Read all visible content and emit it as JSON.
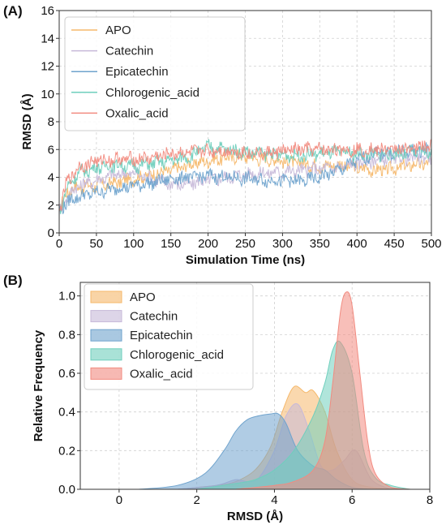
{
  "chart_data": [
    {
      "panel_label": "(A)",
      "type": "line",
      "xlabel": "Simulation Time (ns)",
      "ylabel": "RMSD (Å)",
      "xlim": [
        0,
        500
      ],
      "ylim": [
        0,
        16
      ],
      "xticks": [
        0,
        50,
        100,
        150,
        200,
        250,
        300,
        350,
        400,
        450,
        500
      ],
      "yticks": [
        0,
        2,
        4,
        6,
        8,
        10,
        12,
        14,
        16
      ],
      "grid": true,
      "legend_position": "top-left",
      "series": [
        {
          "name": "APO",
          "color": "#f5b86b",
          "x": [
            0,
            10,
            25,
            50,
            75,
            100,
            125,
            150,
            175,
            200,
            225,
            250,
            275,
            300,
            325,
            350,
            375,
            400,
            425,
            450,
            475,
            500
          ],
          "y": [
            1.5,
            3.0,
            3.3,
            3.4,
            3.6,
            3.9,
            4.2,
            4.5,
            4.9,
            5.2,
            5.4,
            5.5,
            5.3,
            5.2,
            5.0,
            4.8,
            4.9,
            4.7,
            4.5,
            4.6,
            4.9,
            5.0
          ]
        },
        {
          "name": "Catechin",
          "color": "#c7b9d9",
          "x": [
            0,
            10,
            25,
            50,
            75,
            100,
            125,
            150,
            175,
            200,
            225,
            250,
            275,
            300,
            325,
            350,
            375,
            400,
            425,
            450,
            475,
            500
          ],
          "y": [
            1.5,
            2.5,
            3.4,
            3.8,
            4.2,
            4.3,
            3.9,
            3.5,
            3.5,
            3.8,
            4.0,
            4.2,
            4.3,
            4.4,
            4.5,
            4.6,
            4.7,
            5.0,
            5.2,
            5.3,
            5.4,
            5.4
          ]
        },
        {
          "name": "Epicatechin",
          "color": "#6fa3cd",
          "x": [
            0,
            10,
            25,
            50,
            75,
            100,
            125,
            150,
            175,
            200,
            225,
            250,
            275,
            300,
            325,
            350,
            375,
            400,
            425,
            450,
            475,
            500
          ],
          "y": [
            1.5,
            2.2,
            2.6,
            2.9,
            3.2,
            3.4,
            3.6,
            3.9,
            4.0,
            4.1,
            4.0,
            3.9,
            3.8,
            3.8,
            3.7,
            4.0,
            4.5,
            5.2,
            5.7,
            5.8,
            5.9,
            6.0
          ]
        },
        {
          "name": "Chlorogenic_acid",
          "color": "#6fcfbd",
          "x": [
            0,
            10,
            25,
            50,
            75,
            100,
            125,
            150,
            175,
            200,
            225,
            250,
            275,
            300,
            325,
            350,
            375,
            400,
            425,
            450,
            475,
            500
          ],
          "y": [
            1.5,
            3.2,
            4.3,
            4.7,
            4.9,
            4.8,
            5.0,
            5.2,
            5.5,
            6.2,
            6.0,
            5.8,
            5.7,
            5.6,
            5.6,
            5.7,
            5.8,
            5.7,
            5.6,
            5.7,
            5.8,
            5.8
          ]
        },
        {
          "name": "Oxalic_acid",
          "color": "#f28b80",
          "x": [
            0,
            10,
            25,
            50,
            75,
            100,
            125,
            150,
            175,
            200,
            225,
            250,
            275,
            300,
            325,
            350,
            375,
            400,
            425,
            450,
            475,
            500
          ],
          "y": [
            1.5,
            3.6,
            4.7,
            5.2,
            5.3,
            5.3,
            5.4,
            5.7,
            5.8,
            5.9,
            5.9,
            5.8,
            5.7,
            5.9,
            6.0,
            6.0,
            6.0,
            6.0,
            6.0,
            6.0,
            6.1,
            6.3
          ]
        }
      ]
    },
    {
      "panel_label": "(B)",
      "type": "area",
      "xlabel": "RMSD (Å)",
      "ylabel": "Relative Frequency",
      "xlim": [
        -1,
        8
      ],
      "ylim": [
        0,
        1.07
      ],
      "xticks": [
        0,
        2,
        4,
        6,
        8
      ],
      "yticks": [
        0.0,
        0.2,
        0.4,
        0.6,
        0.8,
        1.0
      ],
      "ytick_labels": [
        "0.0",
        "0.2",
        "0.4",
        "0.6",
        "0.8",
        "1.0"
      ],
      "grid": true,
      "legend_position": "top-left",
      "series": [
        {
          "name": "APO",
          "color": "#f5b86b",
          "x": [
            1.5,
            2.5,
            3.0,
            3.5,
            3.9,
            4.2,
            4.5,
            4.8,
            5.0,
            5.3,
            5.6,
            6.0,
            6.5,
            7.2
          ],
          "y": [
            0,
            0.02,
            0.04,
            0.1,
            0.22,
            0.4,
            0.53,
            0.5,
            0.51,
            0.4,
            0.2,
            0.05,
            0.01,
            0
          ]
        },
        {
          "name": "Catechin",
          "color": "#c7b9d9",
          "x": [
            1.5,
            2.5,
            3.0,
            3.3,
            3.6,
            4.0,
            4.3,
            4.6,
            4.9,
            5.2,
            5.5,
            5.8,
            6.1,
            6.5,
            7.0
          ],
          "y": [
            0,
            0.02,
            0.05,
            0.04,
            0.06,
            0.2,
            0.38,
            0.44,
            0.3,
            0.12,
            0.1,
            0.15,
            0.2,
            0.05,
            0
          ]
        },
        {
          "name": "Epicatechin",
          "color": "#6fa3cd",
          "x": [
            0.5,
            1.5,
            2.2,
            2.7,
            3.0,
            3.3,
            3.6,
            3.9,
            4.1,
            4.3,
            4.6,
            5.0,
            5.3,
            5.6,
            6.0,
            6.5
          ],
          "y": [
            0,
            0.02,
            0.08,
            0.2,
            0.3,
            0.36,
            0.38,
            0.39,
            0.39,
            0.34,
            0.2,
            0.12,
            0.1,
            0.05,
            0.01,
            0
          ]
        },
        {
          "name": "Chlorogenic_acid",
          "color": "#6fcfbd",
          "x": [
            2.0,
            3.0,
            3.5,
            4.0,
            4.5,
            5.0,
            5.3,
            5.5,
            5.7,
            6.0,
            6.3,
            6.6,
            7.0,
            7.5
          ],
          "y": [
            0,
            0.03,
            0.05,
            0.1,
            0.2,
            0.38,
            0.55,
            0.72,
            0.76,
            0.6,
            0.2,
            0.06,
            0.02,
            0
          ]
        },
        {
          "name": "Oxalic_acid",
          "color": "#f28b80",
          "x": [
            3.0,
            4.0,
            4.5,
            5.0,
            5.3,
            5.5,
            5.7,
            5.85,
            6.0,
            6.2,
            6.4,
            6.6,
            7.0,
            7.5
          ],
          "y": [
            0,
            0.02,
            0.04,
            0.1,
            0.25,
            0.55,
            0.92,
            1.02,
            0.95,
            0.6,
            0.25,
            0.08,
            0.01,
            0
          ]
        }
      ]
    }
  ]
}
